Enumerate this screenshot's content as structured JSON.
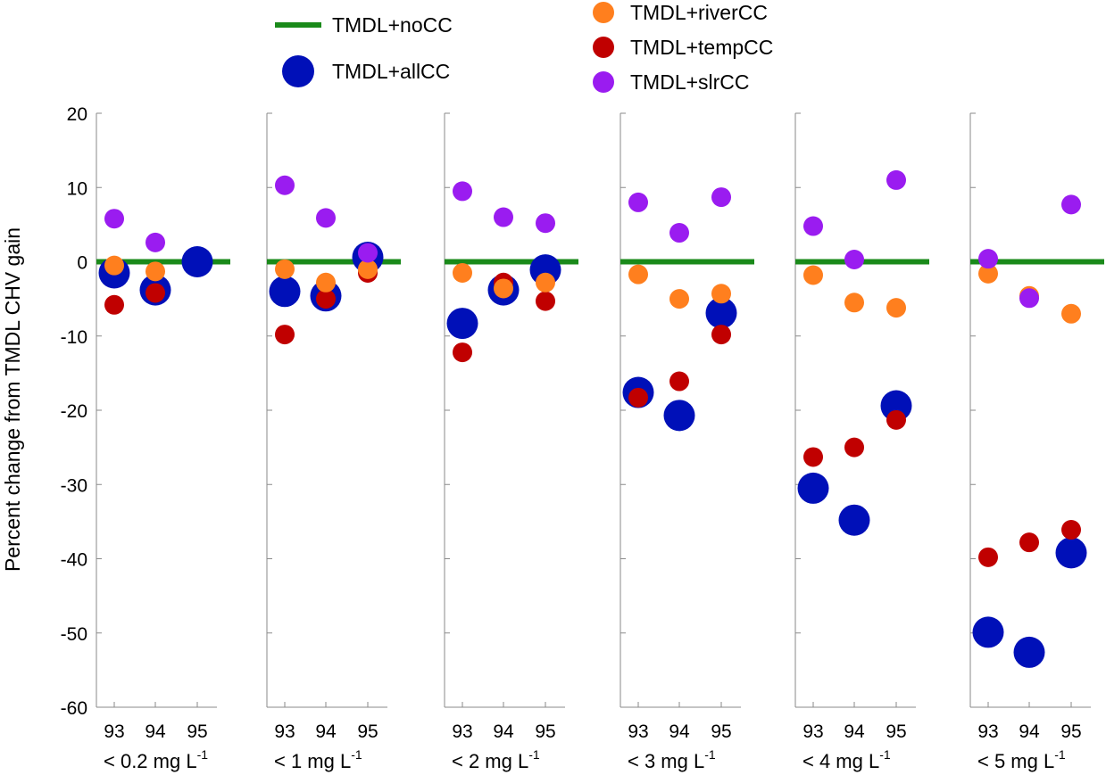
{
  "chart_data": {
    "type": "scatter",
    "ylabel": "Percent change from TMDL CHV gain",
    "ylim": [
      -60,
      20
    ],
    "yticks": [
      20,
      10,
      0,
      -10,
      -20,
      -30,
      -40,
      -50,
      -60
    ],
    "xticks": [
      "93",
      "94",
      "95"
    ],
    "baseline": {
      "name": "TMDL+noCC",
      "value": 0,
      "color": "#1a8a1a"
    },
    "series": [
      {
        "name": "TMDL+allCC",
        "key": "allCC",
        "color": "#0010b8"
      },
      {
        "name": "TMDL+riverCC",
        "key": "riverCC",
        "color": "#ff7f1e"
      },
      {
        "name": "TMDL+tempCC",
        "key": "tempCC",
        "color": "#c00000"
      },
      {
        "name": "TMDL+slrCC",
        "key": "slrCC",
        "color": "#9a1cf0"
      }
    ],
    "panels": [
      {
        "label": "< 0.2 mg L",
        "sup": "-1",
        "allCC": [
          -1.5,
          -3.8,
          0
        ],
        "tempCC": [
          -5.8,
          -4.2,
          0
        ],
        "riverCC": [
          -0.5,
          -1.3,
          0
        ],
        "slrCC": [
          5.8,
          2.6,
          0
        ]
      },
      {
        "label": "< 1  mg L",
        "sup": "-1",
        "allCC": [
          -4,
          -4.6,
          0.6
        ],
        "tempCC": [
          -9.8,
          -5,
          -1.5
        ],
        "riverCC": [
          -1,
          -2.8,
          -1
        ],
        "slrCC": [
          10.3,
          5.9,
          1.2
        ]
      },
      {
        "label": "< 2  mg L",
        "sup": "-1",
        "allCC": [
          -8.3,
          -3.8,
          -1.1
        ],
        "tempCC": [
          -12.2,
          -2.8,
          -5.3
        ],
        "riverCC": [
          -1.5,
          -3.6,
          -2.8
        ],
        "slrCC": [
          9.5,
          6,
          5.2
        ]
      },
      {
        "label": "< 3  mg L",
        "sup": "-1",
        "allCC": [
          -17.6,
          -20.7,
          -6.9
        ],
        "tempCC": [
          -18.3,
          -16.1,
          -9.8
        ],
        "riverCC": [
          -1.7,
          -5,
          -4.3
        ],
        "slrCC": [
          8,
          3.9,
          8.7
        ]
      },
      {
        "label": "< 4  mg L",
        "sup": "-1",
        "allCC": [
          -30.5,
          -34.8,
          -19.4
        ],
        "tempCC": [
          -26.3,
          -25,
          -21.3
        ],
        "riverCC": [
          -1.8,
          -5.5,
          -6.2
        ],
        "slrCC": [
          4.8,
          0.3,
          11
        ]
      },
      {
        "label": "< 5  mg L",
        "sup": "-1",
        "allCC": [
          -49.9,
          -52.6,
          -39.2
        ],
        "tempCC": [
          -39.8,
          -37.8,
          -36.1
        ],
        "riverCC": [
          -1.6,
          -4.6,
          -7
        ],
        "slrCC": [
          0.4,
          -4.9,
          7.7
        ]
      }
    ]
  }
}
